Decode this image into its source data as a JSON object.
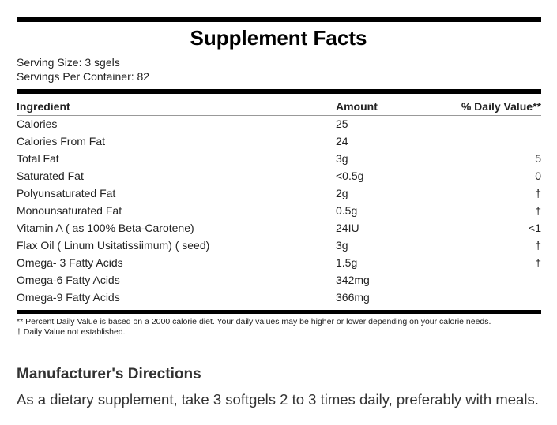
{
  "header": {
    "title": "Supplement Facts",
    "serving_size": "Serving Size: 3 sgels",
    "servings_per_container": "Servings Per Container: 82"
  },
  "table": {
    "columns": [
      "Ingredient",
      "Amount",
      "% Daily Value**"
    ],
    "rows": [
      {
        "ingredient": "Calories",
        "amount": "25"
      },
      {
        "ingredient": "Calories From Fat",
        "amount": "24"
      },
      {
        "ingredient": "Total Fat",
        "amount": "3g",
        "daily_value": "5"
      },
      {
        "ingredient": "Saturated Fat",
        "amount": "<0.5g",
        "daily_value": "0"
      },
      {
        "ingredient": "Polyunsaturated Fat",
        "amount": "2g",
        "daily_value": "†"
      },
      {
        "ingredient": "Monounsaturated Fat",
        "amount": "0.5g",
        "daily_value": "†"
      },
      {
        "ingredient": "Vitamin A ( as 100% Beta-Carotene)",
        "amount": "24IU",
        "daily_value": "<1"
      },
      {
        "ingredient": "Flax Oil ( Linum Usitatissiimum) ( seed)",
        "amount": "3g",
        "daily_value": "†"
      },
      {
        "ingredient": "Omega- 3 Fatty Acids",
        "amount": "1.5g",
        "daily_value": "†"
      },
      {
        "ingredient": "Omega-6 Fatty Acids",
        "amount": "342mg"
      },
      {
        "ingredient": "Omega-9 Fatty Acids",
        "amount": "366mg"
      }
    ]
  },
  "footnotes": [
    "** Percent Daily Value is based on a 2000 calorie diet. Your daily values may be higher or lower depending on your calorie needs.",
    "† Daily Value not established."
  ],
  "directions": {
    "title": "Manufacturer's Directions",
    "text": "As a dietary supplement, take 3 softgels 2 to 3 times daily, preferably with meals."
  }
}
